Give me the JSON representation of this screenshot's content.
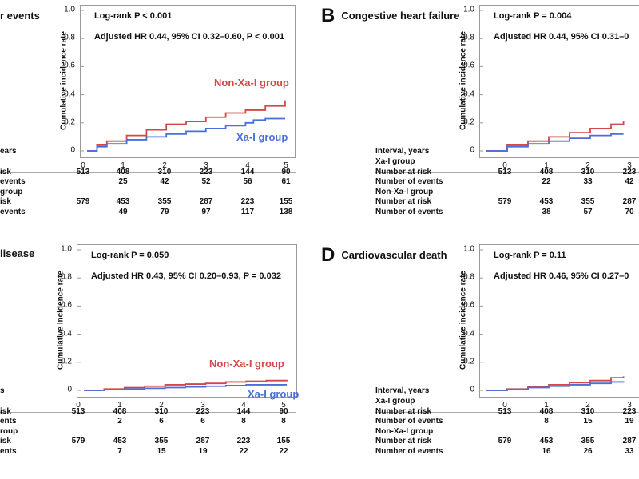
{
  "colors": {
    "non_xa": "#d04848",
    "xa": "#4a6fd8",
    "axis": "#9a9a9a"
  },
  "chart_data": [
    {
      "id": "A",
      "type": "line",
      "letter": "",
      "title": "r events",
      "ylabel": "Cumulative incidence rate",
      "xlabel": "",
      "ylim": [
        0,
        1.0
      ],
      "xlim": [
        0,
        5
      ],
      "yticks": [
        "0",
        "0.2",
        "0.4",
        "0.6",
        "0.8",
        "1.0"
      ],
      "xticks": [
        "0",
        "1",
        "2",
        "3",
        "4",
        "5"
      ],
      "annotations": [
        "Log-rank P < 0.001",
        "Adjusted HR 0.44, 95% CI 0.32–0.60, P < 0.001"
      ],
      "series": [
        {
          "name": "Non-Xa-I group",
          "x": [
            0,
            0.25,
            0.5,
            1,
            1.5,
            2,
            2.5,
            3,
            3.5,
            4,
            4.5,
            5
          ],
          "y": [
            0,
            0.04,
            0.07,
            0.11,
            0.15,
            0.19,
            0.21,
            0.24,
            0.27,
            0.29,
            0.32,
            0.36
          ]
        },
        {
          "name": "Xa-I group",
          "x": [
            0,
            0.25,
            0.5,
            1,
            1.5,
            2,
            2.5,
            3,
            3.5,
            4,
            4.2,
            4.5,
            5
          ],
          "y": [
            0,
            0.03,
            0.05,
            0.08,
            0.1,
            0.12,
            0.14,
            0.16,
            0.18,
            0.2,
            0.22,
            0.23,
            0.23
          ]
        }
      ],
      "table": {
        "header_label": "ears",
        "row_labels": [
          "isk",
          "events",
          "group",
          "isk",
          "events"
        ],
        "xa_risk": [
          "513",
          "408",
          "310",
          "223",
          "144",
          "90"
        ],
        "xa_events": [
          "",
          "25",
          "42",
          "52",
          "56",
          "61"
        ],
        "non_risk": [
          "579",
          "453",
          "355",
          "287",
          "223",
          "155"
        ],
        "non_events": [
          "",
          "49",
          "79",
          "97",
          "117",
          "138"
        ]
      }
    },
    {
      "id": "B",
      "type": "line",
      "letter": "B",
      "title": "Congestive heart failure",
      "ylabel": "Cumulative incidence rate",
      "xlabel": "",
      "ylim": [
        0,
        1.0
      ],
      "xlim": [
        0,
        5
      ],
      "yticks": [
        "0",
        "0.2",
        "0.4",
        "0.6",
        "0.8",
        "1.0"
      ],
      "xticks": [
        "0",
        "1",
        "2",
        "3"
      ],
      "annotations": [
        "Log-rank P = 0.004",
        "Adjusted HR 0.44, 95% CI 0.31–0"
      ],
      "series": [
        {
          "name": "Non-Xa-I group",
          "x": [
            0,
            0.5,
            1,
            1.5,
            2,
            2.5,
            3,
            3.3
          ],
          "y": [
            0,
            0.04,
            0.07,
            0.1,
            0.13,
            0.16,
            0.19,
            0.21
          ]
        },
        {
          "name": "Xa-I group",
          "x": [
            0,
            0.5,
            1,
            1.5,
            2,
            2.5,
            3,
            3.3
          ],
          "y": [
            0,
            0.03,
            0.05,
            0.07,
            0.09,
            0.11,
            0.12,
            0.12
          ]
        }
      ],
      "table": {
        "header_label": "Interval, years",
        "row_labels": [
          "Xa-I group",
          "Number at risk",
          "Number of events",
          "Non-Xa-I group",
          "Number at risk",
          "Number of events"
        ],
        "xa_risk": [
          "513",
          "408",
          "310",
          "223"
        ],
        "xa_events": [
          "",
          "22",
          "33",
          "42"
        ],
        "non_risk": [
          "579",
          "453",
          "355",
          "287"
        ],
        "non_events": [
          "",
          "38",
          "57",
          "70"
        ]
      }
    },
    {
      "id": "C",
      "type": "line",
      "letter": "",
      "title": "lisease",
      "ylabel": "Cumulative incidence rate",
      "xlabel": "",
      "ylim": [
        0,
        1.0
      ],
      "xlim": [
        0,
        5
      ],
      "yticks": [
        "0",
        "0.2",
        "0.4",
        "0.6",
        "0.8",
        "1.0"
      ],
      "xticks": [
        "0",
        "1",
        "2",
        "3",
        "4",
        "5"
      ],
      "annotations": [
        "Log-rank P = 0.059",
        "Adjusted HR 0.43, 95% CI 0.20–0.93, P = 0.032"
      ],
      "series": [
        {
          "name": "Non-Xa-I group",
          "x": [
            0,
            0.5,
            1,
            1.5,
            2,
            2.5,
            3,
            3.5,
            4,
            4.5,
            5
          ],
          "y": [
            0,
            0.01,
            0.02,
            0.03,
            0.04,
            0.045,
            0.05,
            0.06,
            0.065,
            0.07,
            0.075
          ]
        },
        {
          "name": "Xa-I group",
          "x": [
            0,
            0.5,
            1,
            1.5,
            2,
            2.5,
            3,
            3.5,
            4,
            4.5,
            5
          ],
          "y": [
            0,
            0.005,
            0.01,
            0.015,
            0.02,
            0.025,
            0.03,
            0.035,
            0.04,
            0.04,
            0.04
          ]
        }
      ],
      "table": {
        "header_label": "s",
        "row_labels": [
          "isk",
          "ents",
          "roup",
          "isk",
          "ents"
        ],
        "xa_risk": [
          "513",
          "408",
          "310",
          "223",
          "144",
          "90"
        ],
        "xa_events": [
          "",
          "2",
          "6",
          "6",
          "8",
          "8"
        ],
        "non_risk": [
          "579",
          "453",
          "355",
          "287",
          "223",
          "155"
        ],
        "non_events": [
          "",
          "7",
          "15",
          "19",
          "22",
          "22"
        ]
      }
    },
    {
      "id": "D",
      "type": "line",
      "letter": "D",
      "title": "Cardiovascular death",
      "ylabel": "Cumulative incidence rate",
      "xlabel": "",
      "ylim": [
        0,
        1.0
      ],
      "xlim": [
        0,
        5
      ],
      "yticks": [
        "0",
        "0.2",
        "0.4",
        "0.6",
        "0.8",
        "1.0"
      ],
      "xticks": [
        "0",
        "1",
        "2",
        "3"
      ],
      "annotations": [
        "Log-rank P = 0.11",
        "Adjusted HR 0.46, 95% CI 0.27–0"
      ],
      "series": [
        {
          "name": "Non-Xa-I group",
          "x": [
            0,
            0.5,
            1,
            1.5,
            2,
            2.5,
            3,
            3.3
          ],
          "y": [
            0,
            0.01,
            0.025,
            0.04,
            0.055,
            0.07,
            0.09,
            0.1
          ]
        },
        {
          "name": "Xa-I group",
          "x": [
            0,
            0.5,
            1,
            1.5,
            2,
            2.5,
            3,
            3.3
          ],
          "y": [
            0,
            0.008,
            0.02,
            0.03,
            0.04,
            0.05,
            0.06,
            0.065
          ]
        }
      ],
      "table": {
        "header_label": "Interval, years",
        "row_labels": [
          "Xa-I group",
          "Number at risk",
          "Number of events",
          "Non-Xa-I group",
          "Number at risk",
          "Number of events"
        ],
        "xa_risk": [
          "513",
          "408",
          "310",
          "223"
        ],
        "xa_events": [
          "",
          "8",
          "15",
          "19"
        ],
        "non_risk": [
          "579",
          "453",
          "355",
          "287"
        ],
        "non_events": [
          "",
          "16",
          "26",
          "33"
        ]
      }
    }
  ]
}
